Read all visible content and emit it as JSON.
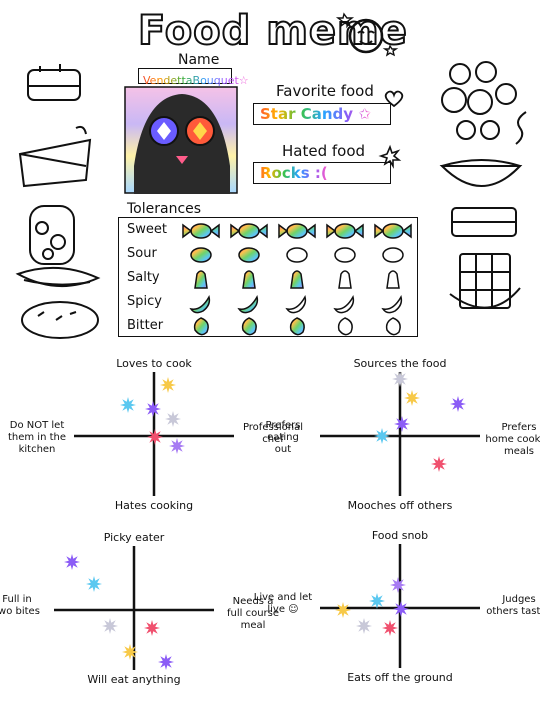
{
  "title": "Food meme",
  "name_label": "Name",
  "name_value": "VendettaBouquet☆",
  "favorite": {
    "label": "Favorite food",
    "value": "Star Candy ✩"
  },
  "hated": {
    "label": "Hated food",
    "value": "Rocks :("
  },
  "tolerances": {
    "title": "Tolerances",
    "rows": [
      {
        "label": "Sweet",
        "levels": [
          1,
          1,
          1,
          1,
          1
        ],
        "icon": "candy-icon"
      },
      {
        "label": "Sour",
        "levels": [
          1,
          1,
          0,
          0,
          0
        ],
        "icon": "lemon-icon"
      },
      {
        "label": "Salty",
        "levels": [
          1,
          1,
          1,
          0,
          0
        ],
        "icon": "salt-shaker-icon"
      },
      {
        "label": "Spicy",
        "levels": [
          1,
          1,
          0,
          0,
          0
        ],
        "icon": "pepper-icon"
      },
      {
        "label": "Bitter",
        "levels": [
          1,
          1,
          1,
          0,
          0
        ],
        "icon": "leaf-icon"
      }
    ]
  },
  "colors": {
    "pink": "#f0506e",
    "yellow": "#f7c948",
    "blue": "#5bc8f0",
    "purple": "#8b5cf6",
    "violet": "#a77bf3",
    "gray": "#c8c8d8",
    "lavender": "#b9a6f5"
  },
  "charts": [
    {
      "top": "Loves to cook",
      "bottom": "Hates cooking",
      "left": "Do NOT let\nthem in the\nkitchen",
      "right": "Professional\nchef"
    },
    {
      "top": "Sources the food",
      "bottom": "Mooches off others",
      "left": "Prefers\neating\nout",
      "right": "Prefers\nhome cooked\nmeals"
    },
    {
      "top": "Picky eater",
      "bottom": "Will eat anything",
      "left": "Full in\ntwo bites",
      "right": "Needs a\nfull course\nmeal"
    },
    {
      "top": "Food snob",
      "bottom": "Eats off the ground",
      "left": "Live and let\nlive ☺",
      "right": "Judges\nothers tastes"
    }
  ]
}
